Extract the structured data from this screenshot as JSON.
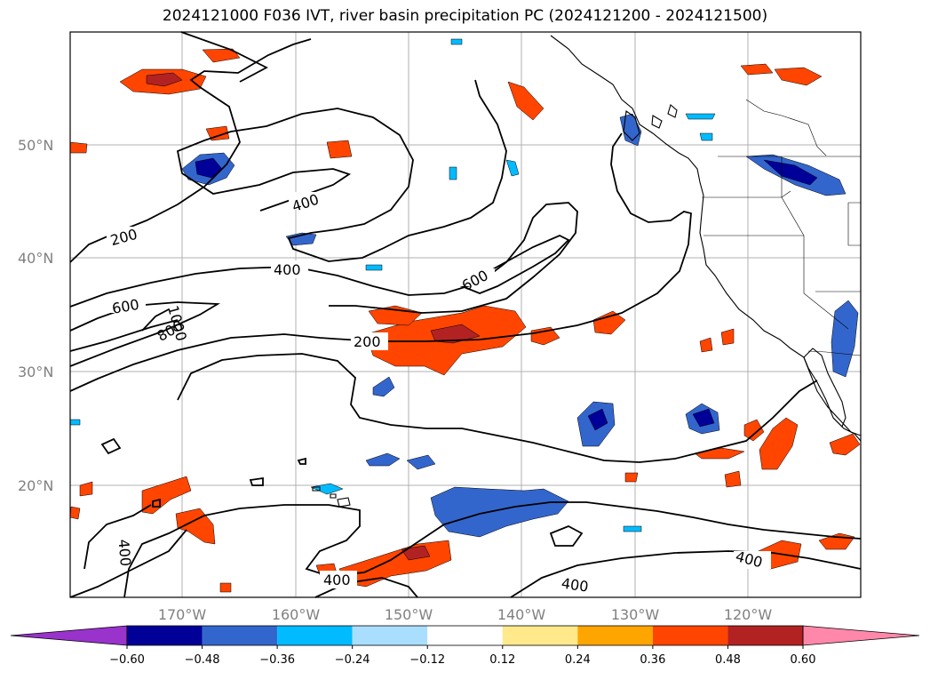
{
  "title": "2024121000 F036 IVT, river basin precipitation PC (2024121200 - 2024121500)",
  "lat_labels": [
    "50°N",
    "40°N",
    "30°N",
    "20°N"
  ],
  "lon_labels": [
    "170°W",
    "160°W",
    "150°W",
    "140°W",
    "130°W",
    "120°W"
  ],
  "contour_labels": [
    "200",
    "400",
    "400",
    "600",
    "600",
    "1000",
    "800",
    "200",
    "400",
    "400",
    "400",
    "400"
  ],
  "colorbar": {
    "ticks": [
      "−0.60",
      "−0.48",
      "−0.36",
      "−0.24",
      "−0.12",
      "0.12",
      "0.24",
      "0.36",
      "0.48",
      "0.60"
    ],
    "colors": [
      "#9933cc",
      "#000099",
      "#3366cc",
      "#00bbff",
      "#aadeff",
      "#ffffff",
      "#ffe98a",
      "#ffa500",
      "#ff4500",
      "#b22222",
      "#ff88aa"
    ]
  },
  "colors": {
    "contour": "#000000",
    "grid": "#b0b0b0",
    "coast": "#000000"
  }
}
